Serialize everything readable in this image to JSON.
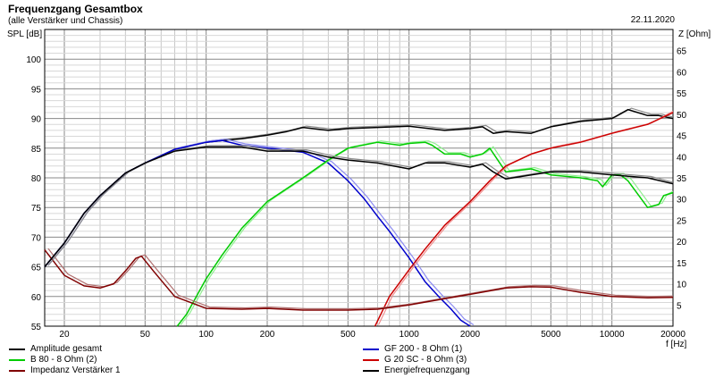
{
  "header": {
    "title": "Frequenzgang Gesamtbox",
    "subtitle": "(alle Verstärker und Chassis)",
    "date": "22.11.2020"
  },
  "chart_data": {
    "type": "line",
    "title": "Frequenzgang Gesamtbox",
    "subtitle": "(alle Verstärker und Chassis)",
    "xlabel": "f [Hz]",
    "ylabel_left": "SPL [dB]",
    "ylabel_right": "Z [Ohm]",
    "xscale": "log",
    "xlim": [
      16,
      20000
    ],
    "ylim_left": [
      55,
      105
    ],
    "ylim_right": [
      0,
      70
    ],
    "grid": true,
    "x_ticks": [
      20,
      50,
      100,
      200,
      500,
      1000,
      2000,
      5000,
      10000,
      20000
    ],
    "y_ticks_left": [
      55,
      60,
      65,
      70,
      75,
      80,
      85,
      90,
      95,
      100
    ],
    "y_ticks_right": [
      5,
      10,
      15,
      20,
      25,
      30,
      35,
      40,
      45,
      50,
      55,
      60,
      65
    ],
    "legend_position": "bottom",
    "series": [
      {
        "name": "Amplitude gesamt",
        "color": "#000000",
        "axis": "left",
        "points": [
          [
            16,
            65
          ],
          [
            20,
            69
          ],
          [
            25,
            74
          ],
          [
            30,
            77
          ],
          [
            40,
            80.8
          ],
          [
            50,
            82.5
          ],
          [
            70,
            84.8
          ],
          [
            100,
            86
          ],
          [
            120,
            86.3
          ],
          [
            150,
            86.6
          ],
          [
            200,
            87.2
          ],
          [
            250,
            87.8
          ],
          [
            300,
            88.5
          ],
          [
            400,
            88
          ],
          [
            500,
            88.3
          ],
          [
            700,
            88.5
          ],
          [
            1000,
            88.7
          ],
          [
            1500,
            88
          ],
          [
            2000,
            88.3
          ],
          [
            2300,
            88.6
          ],
          [
            2600,
            87.5
          ],
          [
            3000,
            87.8
          ],
          [
            4000,
            87.5
          ],
          [
            5000,
            88.6
          ],
          [
            7000,
            89.5
          ],
          [
            10000,
            90
          ],
          [
            12000,
            91.5
          ],
          [
            15000,
            90.5
          ],
          [
            17000,
            90.5
          ],
          [
            20000,
            90
          ]
        ]
      },
      {
        "name": "GF 200 - 8 Ohm (1)",
        "color": "#0000cc",
        "axis": "left",
        "points": [
          [
            16,
            65
          ],
          [
            20,
            69
          ],
          [
            25,
            74
          ],
          [
            30,
            77
          ],
          [
            40,
            80.8
          ],
          [
            50,
            82.5
          ],
          [
            70,
            84.8
          ],
          [
            100,
            86
          ],
          [
            120,
            86.3
          ],
          [
            150,
            85.5
          ],
          [
            200,
            85
          ],
          [
            300,
            84.3
          ],
          [
            400,
            82.5
          ],
          [
            500,
            79.5
          ],
          [
            600,
            76.5
          ],
          [
            700,
            73.5
          ],
          [
            800,
            71
          ],
          [
            1000,
            66.5
          ],
          [
            1200,
            62.5
          ],
          [
            1400,
            60
          ],
          [
            1600,
            58
          ],
          [
            1800,
            56
          ],
          [
            2000,
            55
          ]
        ]
      },
      {
        "name": "B 80 - 8 Ohm (2)",
        "color": "#00cc00",
        "axis": "left",
        "points": [
          [
            72,
            55
          ],
          [
            80,
            57
          ],
          [
            100,
            63
          ],
          [
            120,
            67
          ],
          [
            150,
            71.5
          ],
          [
            200,
            76
          ],
          [
            300,
            80
          ],
          [
            400,
            83
          ],
          [
            500,
            85
          ],
          [
            700,
            86
          ],
          [
            900,
            85.5
          ],
          [
            1000,
            85.8
          ],
          [
            1200,
            86
          ],
          [
            1300,
            85.5
          ],
          [
            1500,
            84
          ],
          [
            1800,
            84
          ],
          [
            2000,
            83.5
          ],
          [
            2300,
            84
          ],
          [
            2500,
            85
          ],
          [
            2800,
            82.5
          ],
          [
            3000,
            81
          ],
          [
            4000,
            81.5
          ],
          [
            5000,
            80.5
          ],
          [
            7000,
            80
          ],
          [
            8500,
            79.5
          ],
          [
            9000,
            78.5
          ],
          [
            10000,
            80.5
          ],
          [
            11000,
            80.5
          ],
          [
            12000,
            79.5
          ],
          [
            15000,
            75
          ],
          [
            17000,
            75.5
          ],
          [
            18000,
            77
          ],
          [
            20000,
            77.5
          ]
        ]
      },
      {
        "name": "G 20 SC - 8 Ohm (3)",
        "color": "#cc0000",
        "axis": "left",
        "points": [
          [
            680,
            55
          ],
          [
            800,
            60
          ],
          [
            1000,
            64.5
          ],
          [
            1200,
            68
          ],
          [
            1500,
            72
          ],
          [
            2000,
            76
          ],
          [
            2500,
            79.5
          ],
          [
            3000,
            82
          ],
          [
            4000,
            84
          ],
          [
            5000,
            85
          ],
          [
            7000,
            86
          ],
          [
            10000,
            87.5
          ],
          [
            15000,
            89
          ],
          [
            20000,
            91
          ]
        ]
      },
      {
        "name": "Impedanz Verstärker 1",
        "color": "#800000",
        "axis": "right",
        "points": [
          [
            16,
            18
          ],
          [
            20,
            12
          ],
          [
            25,
            9.5
          ],
          [
            30,
            9
          ],
          [
            35,
            10
          ],
          [
            40,
            13
          ],
          [
            45,
            16
          ],
          [
            48,
            16.5
          ],
          [
            55,
            13
          ],
          [
            70,
            7
          ],
          [
            100,
            4.2
          ],
          [
            150,
            4
          ],
          [
            200,
            4.2
          ],
          [
            300,
            3.8
          ],
          [
            500,
            3.8
          ],
          [
            700,
            4
          ],
          [
            1000,
            5
          ],
          [
            1500,
            6.5
          ],
          [
            2000,
            7.5
          ],
          [
            3000,
            9
          ],
          [
            4000,
            9.3
          ],
          [
            5000,
            9.2
          ],
          [
            7000,
            8
          ],
          [
            10000,
            7
          ],
          [
            15000,
            6.7
          ],
          [
            20000,
            6.8
          ]
        ]
      },
      {
        "name": "Energiefrequenzgang",
        "color": "#000000",
        "axis": "left",
        "points": [
          [
            16,
            65
          ],
          [
            20,
            69
          ],
          [
            25,
            74
          ],
          [
            30,
            77
          ],
          [
            40,
            80.8
          ],
          [
            50,
            82.5
          ],
          [
            70,
            84.5
          ],
          [
            100,
            85.2
          ],
          [
            150,
            85.2
          ],
          [
            200,
            84.5
          ],
          [
            300,
            84.5
          ],
          [
            400,
            83.5
          ],
          [
            500,
            83
          ],
          [
            700,
            82.5
          ],
          [
            1000,
            81.5
          ],
          [
            1200,
            82.5
          ],
          [
            1500,
            82.5
          ],
          [
            2000,
            81.8
          ],
          [
            2300,
            82.3
          ],
          [
            2600,
            81
          ],
          [
            3000,
            79.8
          ],
          [
            4000,
            80.5
          ],
          [
            5000,
            81
          ],
          [
            7000,
            81
          ],
          [
            10000,
            80.5
          ],
          [
            15000,
            80
          ],
          [
            20000,
            79
          ]
        ]
      }
    ]
  }
}
